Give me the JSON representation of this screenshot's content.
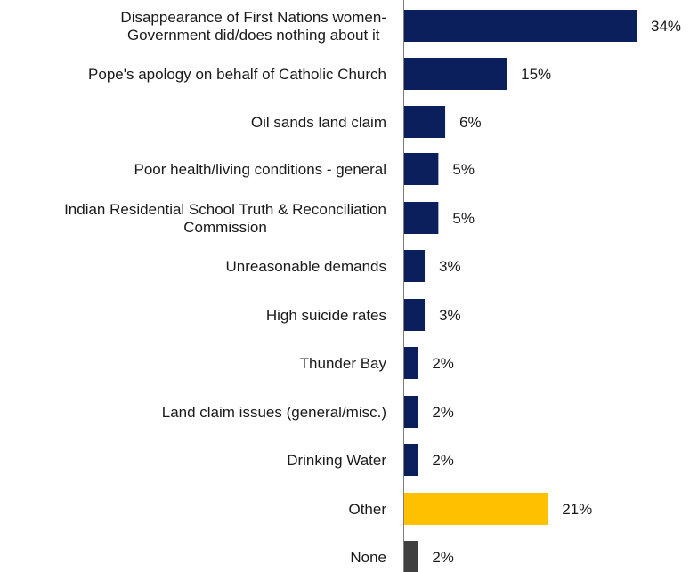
{
  "chart_data": {
    "type": "bar",
    "orientation": "horizontal",
    "title": "",
    "xlabel": "",
    "ylabel": "",
    "value_suffix": "%",
    "xlim": [
      0,
      34
    ],
    "grid": false,
    "categories": [
      "Disappearance of First Nations women-\nGovernment did/does nothing about it",
      "Pope's apology on behalf of Catholic Church",
      "Oil sands land claim",
      "Poor health/living conditions - general",
      "Indian Residential School Truth & Reconciliation\nCommission",
      "Unreasonable demands",
      "High suicide rates",
      "Thunder Bay",
      "Land claim issues (general/misc.)",
      "Drinking Water",
      "Other",
      "None"
    ],
    "values": [
      34,
      15,
      6,
      5,
      5,
      3,
      3,
      2,
      2,
      2,
      21,
      2
    ],
    "bar_colors": [
      "#0b1f5c",
      "#0b1f5c",
      "#0b1f5c",
      "#0b1f5c",
      "#0b1f5c",
      "#0b1f5c",
      "#0b1f5c",
      "#0b1f5c",
      "#0b1f5c",
      "#0b1f5c",
      "#ffc000",
      "#404040"
    ]
  }
}
